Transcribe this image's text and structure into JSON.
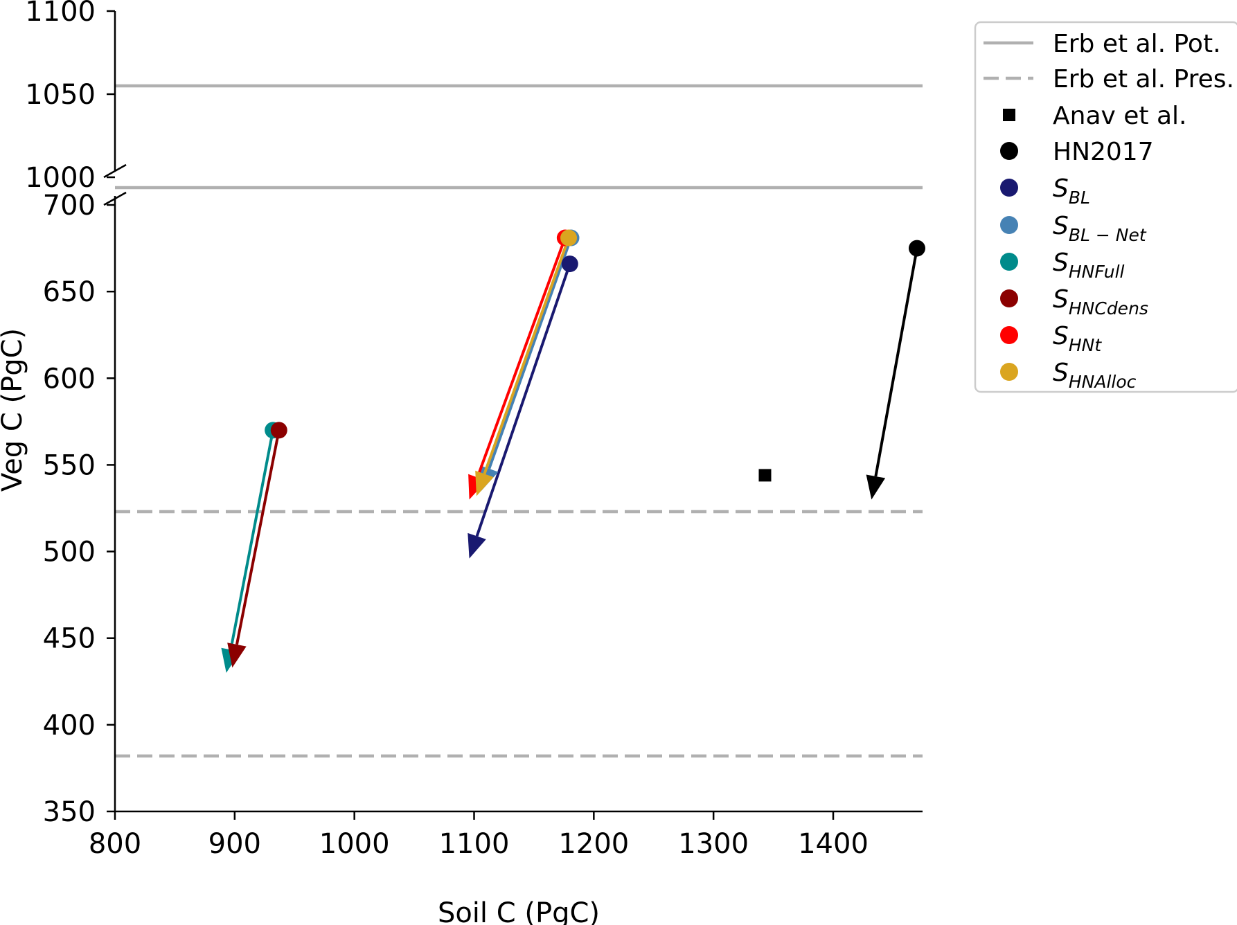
{
  "chart_data": {
    "type": "scatter",
    "xlabel": "Soil C (PgC)",
    "ylabel": "Veg C (PgC)",
    "xlim": [
      800,
      1475
    ],
    "x_ticks": [
      800,
      900,
      1000,
      1100,
      1200,
      1300,
      1400
    ],
    "axis_break": true,
    "y_lower": {
      "ylim": [
        350,
        715
      ],
      "ticks": [
        350,
        400,
        450,
        500,
        550,
        600,
        650,
        700
      ]
    },
    "y_upper": {
      "ylim": [
        1000,
        1100
      ],
      "ticks": [
        1000,
        1050,
        1100
      ]
    },
    "grid": false,
    "legend_position": "outside-right-top",
    "hlines": [
      {
        "name": "Erb et al. Pot.",
        "style": "solid",
        "color": "#b0b0b0",
        "y": [
          1055,
          710
        ]
      },
      {
        "name": "Erb et al. Pres.",
        "style": "dashed",
        "color": "#b0b0b0",
        "y": [
          523,
          382
        ]
      }
    ],
    "points": [
      {
        "name": "Anav et al.",
        "marker": "square",
        "color": "#000000",
        "x": 1343,
        "y": 544
      }
    ],
    "series": [
      {
        "name": "HN2017",
        "label_main": "HN2017",
        "label_sub": "",
        "color": "#000000",
        "start": [
          1470,
          675
        ],
        "end": [
          1432,
          530
        ]
      },
      {
        "name": "S_BL",
        "label_main": "S",
        "label_sub": "BL",
        "color": "#191970",
        "start": [
          1180,
          666
        ],
        "end": [
          1096,
          496
        ]
      },
      {
        "name": "S_BL-Net",
        "label_main": "S",
        "label_sub": "BL − Net",
        "color": "#4682b4",
        "start": [
          1181,
          681
        ],
        "end": [
          1106,
          535
        ]
      },
      {
        "name": "S_HNFull",
        "label_main": "S",
        "label_sub": "HNFull",
        "color": "#008b8b",
        "start": [
          932,
          570
        ],
        "end": [
          893,
          430
        ]
      },
      {
        "name": "S_HNCdens",
        "label_main": "S",
        "label_sub": "HNCdens",
        "color": "#8b0000",
        "start": [
          937,
          570
        ],
        "end": [
          898,
          433
        ]
      },
      {
        "name": "S_HNt",
        "label_main": "S",
        "label_sub": "HNt",
        "color": "#ff0000",
        "start": [
          1176,
          681
        ],
        "end": [
          1096,
          530
        ]
      },
      {
        "name": "S_HNAlloc",
        "label_main": "S",
        "label_sub": "HNAlloc",
        "color": "#daa520",
        "start": [
          1179,
          681
        ],
        "end": [
          1102,
          532
        ]
      }
    ]
  }
}
